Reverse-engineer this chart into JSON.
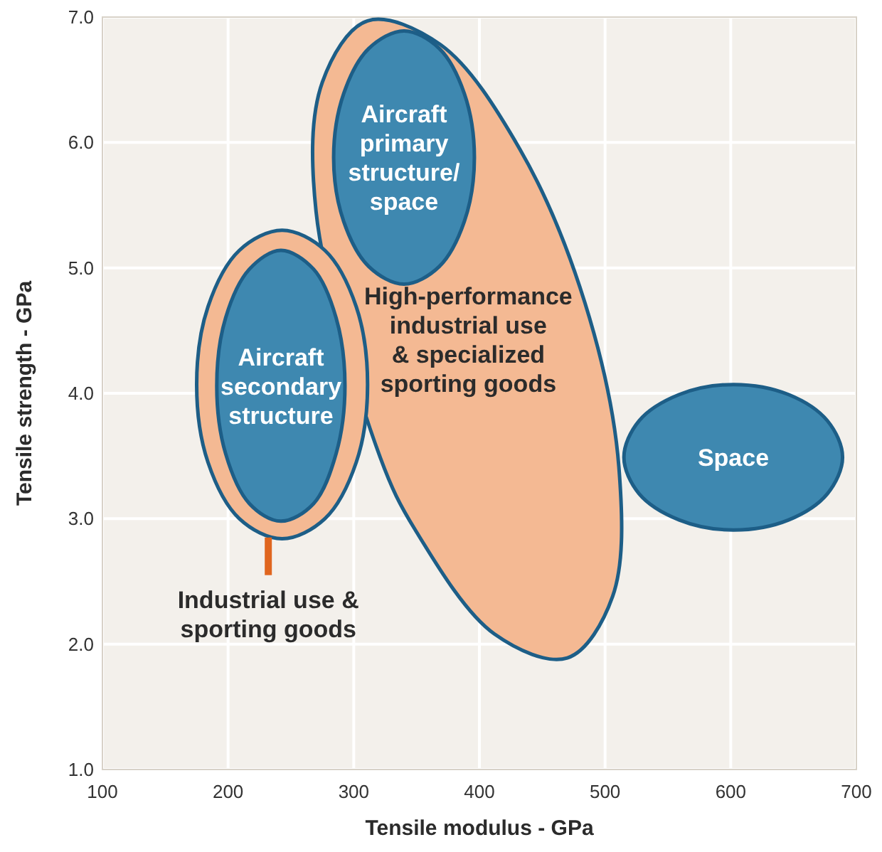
{
  "chart_data": {
    "type": "area",
    "xlabel": "Tensile modulus - GPa",
    "ylabel": "Tensile strength - GPa",
    "xlim": [
      100,
      700
    ],
    "xticks": [
      100,
      200,
      300,
      400,
      500,
      600,
      700
    ],
    "ylim": [
      1,
      7
    ],
    "yticks": [
      {
        "value": 1,
        "label": "1.0"
      },
      {
        "value": 2,
        "label": "2.0"
      },
      {
        "value": 3,
        "label": "3.0"
      },
      {
        "value": 4,
        "label": "4.0"
      },
      {
        "value": 5,
        "label": "5.0"
      },
      {
        "value": 6,
        "label": "6.0"
      },
      {
        "value": 7,
        "label": "7.0"
      }
    ],
    "grid": true,
    "series": [
      {
        "name": "High-performance\nindustrial use\n& specialized\nsporting goods",
        "type": "area",
        "color": "#f4b993",
        "x": [
          311,
          369,
          432,
          484,
          511,
          506,
          470,
          412,
          349,
          321,
          270,
          275
        ],
        "values": [
          6.97,
          6.78,
          5.95,
          4.72,
          3.41,
          2.38,
          1.89,
          2.08,
          2.91,
          3.49,
          5.45,
          6.48
        ]
      },
      {
        "name": "Aircraft\nprimary\nstructure/\nspace",
        "type": "area",
        "color": "#3e88b0",
        "x": [
          396,
          388,
          368,
          340,
          312,
          292,
          284,
          292,
          312,
          340,
          368,
          388
        ],
        "values": [
          5.88,
          6.39,
          6.75,
          6.89,
          6.75,
          6.39,
          5.88,
          5.37,
          5.01,
          4.87,
          5.01,
          5.37
        ]
      },
      {
        "type": "area",
        "color": "#f4b993",
        "x": [
          311,
          302,
          277,
          243,
          209,
          184,
          175,
          184,
          209,
          243,
          277,
          302
        ],
        "values": [
          4.07,
          4.69,
          5.14,
          5.3,
          5.14,
          4.69,
          4.07,
          3.45,
          3.0,
          2.84,
          3.0,
          3.45
        ]
      },
      {
        "name": "Aircraft\nsecondary\nstructure",
        "type": "area",
        "color": "#3e88b0",
        "x": [
          293,
          286,
          268,
          242,
          217,
          198,
          191,
          198,
          217,
          242,
          268,
          286
        ],
        "values": [
          4.06,
          4.6,
          4.99,
          5.14,
          4.99,
          4.6,
          4.06,
          3.52,
          3.12,
          2.98,
          3.12,
          3.52
        ]
      },
      {
        "name": "Space",
        "type": "area",
        "color": "#3e88b0",
        "x": [
          689,
          677,
          646,
          602,
          559,
          527,
          515,
          527,
          559,
          602,
          646,
          677
        ],
        "values": [
          3.49,
          3.78,
          3.99,
          4.07,
          3.99,
          3.78,
          3.49,
          3.2,
          2.99,
          2.91,
          2.99,
          3.2
        ]
      },
      {
        "type": "line",
        "name": "Industrial use &\nsporting goods",
        "color": "#e0661f",
        "x": [
          232,
          232
        ],
        "values": [
          2.55,
          2.85
        ]
      }
    ]
  }
}
